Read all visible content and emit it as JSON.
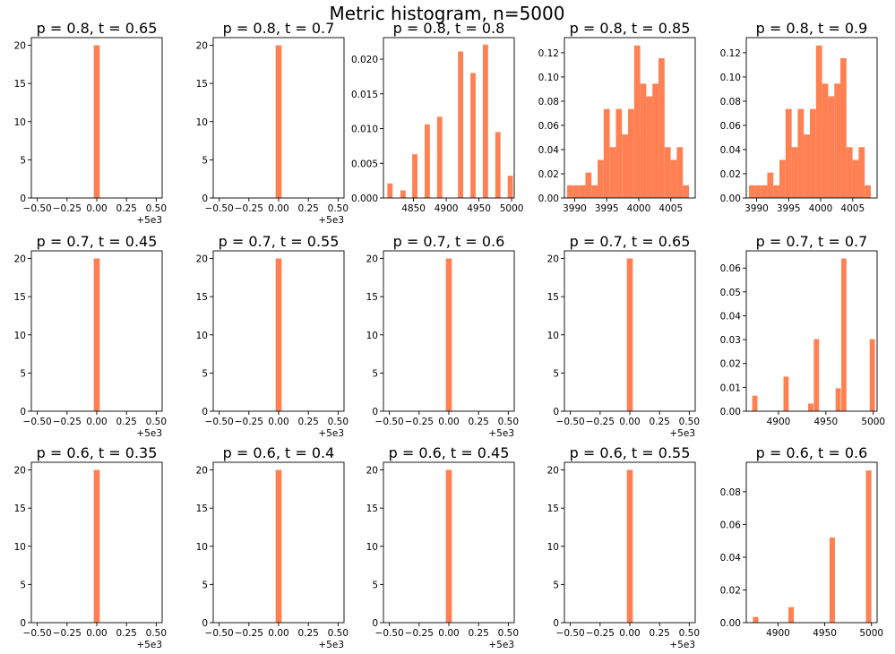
{
  "figure": {
    "title": "Metric histogram, n=5000"
  },
  "colors": {
    "bar": "#ff8153"
  },
  "chart_data": [
    {
      "type": "bar",
      "title": "p = 0.8, t = 0.65",
      "xlim": [
        -0.55,
        0.55
      ],
      "ylim": [
        0,
        21
      ],
      "xticks": [
        -0.5,
        -0.25,
        0,
        0.25,
        0.5
      ],
      "xtick_labels": [
        "−0.50",
        "−0.25",
        "0.00",
        "0.25",
        "0.50"
      ],
      "yticks": [
        0,
        5,
        10,
        15,
        20
      ],
      "ytick_labels": [
        "0",
        "5",
        "10",
        "15",
        "20"
      ],
      "x_offset": "+5e3",
      "bar_width": 0.05,
      "bars": [
        {
          "x": 0.0,
          "value": 20
        }
      ]
    },
    {
      "type": "bar",
      "title": "p = 0.8, t = 0.7",
      "xlim": [
        -0.55,
        0.55
      ],
      "ylim": [
        0,
        21
      ],
      "xticks": [
        -0.5,
        -0.25,
        0,
        0.25,
        0.5
      ],
      "xtick_labels": [
        "−0.50",
        "−0.25",
        "0.00",
        "0.25",
        "0.50"
      ],
      "yticks": [
        0,
        5,
        10,
        15,
        20
      ],
      "ytick_labels": [
        "0",
        "5",
        "10",
        "15",
        "20"
      ],
      "x_offset": "+5e3",
      "bar_width": 0.05,
      "bars": [
        {
          "x": 0.0,
          "value": 20
        }
      ]
    },
    {
      "type": "bar",
      "title": "p = 0.8, t = 0.8",
      "xlim": [
        4804,
        5004
      ],
      "ylim": [
        0,
        0.0231
      ],
      "xticks": [
        4850,
        4900,
        4950,
        5000
      ],
      "xtick_labels": [
        "4850",
        "4900",
        "4950",
        "5000"
      ],
      "yticks": [
        0,
        0.005,
        0.01,
        0.015,
        0.02
      ],
      "ytick_labels": [
        "0.000",
        "0.005",
        "0.010",
        "0.015",
        "0.020"
      ],
      "x_offset": "",
      "bar_width": 8,
      "bars": [
        {
          "x": 4814,
          "value": 0.0021
        },
        {
          "x": 4834,
          "value": 0.0011
        },
        {
          "x": 4852,
          "value": 0.0063
        },
        {
          "x": 4871,
          "value": 0.0106
        },
        {
          "x": 4890,
          "value": 0.0117
        },
        {
          "x": 4922,
          "value": 0.0211
        },
        {
          "x": 4941,
          "value": 0.018
        },
        {
          "x": 4960,
          "value": 0.0221
        },
        {
          "x": 4979,
          "value": 0.0095
        },
        {
          "x": 4998,
          "value": 0.0032
        }
      ]
    },
    {
      "type": "bar",
      "title": "p = 0.8, t = 0.85",
      "xlim": [
        3988.4,
        4008.8
      ],
      "ylim": [
        0,
        0.1325
      ],
      "xticks": [
        3990,
        3995,
        4000,
        4005
      ],
      "xtick_labels": [
        "3990",
        "3995",
        "4000",
        "4005"
      ],
      "yticks": [
        0,
        0.02,
        0.04,
        0.06,
        0.08,
        0.1,
        0.12
      ],
      "ytick_labels": [
        "0.00",
        "0.02",
        "0.04",
        "0.06",
        "0.08",
        "0.10",
        "0.12"
      ],
      "x_offset": "",
      "bar_width": 0.95,
      "bars": [
        {
          "x": 3989.3,
          "value": 0.0105
        },
        {
          "x": 3990.25,
          "value": 0.0105
        },
        {
          "x": 3991.2,
          "value": 0.0105
        },
        {
          "x": 3992.15,
          "value": 0.021
        },
        {
          "x": 3993.1,
          "value": 0.0105
        },
        {
          "x": 3994.05,
          "value": 0.0315
        },
        {
          "x": 3995.0,
          "value": 0.0735
        },
        {
          "x": 3995.95,
          "value": 0.042
        },
        {
          "x": 3996.9,
          "value": 0.0735
        },
        {
          "x": 3997.85,
          "value": 0.0525
        },
        {
          "x": 3998.8,
          "value": 0.0735
        },
        {
          "x": 3999.75,
          "value": 0.126
        },
        {
          "x": 4000.7,
          "value": 0.0945
        },
        {
          "x": 4001.65,
          "value": 0.084
        },
        {
          "x": 4002.6,
          "value": 0.0945
        },
        {
          "x": 4003.55,
          "value": 0.1155
        },
        {
          "x": 4004.5,
          "value": 0.042
        },
        {
          "x": 4005.45,
          "value": 0.0315
        },
        {
          "x": 4006.4,
          "value": 0.042
        },
        {
          "x": 4007.35,
          "value": 0.0105
        }
      ]
    },
    {
      "type": "bar",
      "title": "p = 0.8, t = 0.9",
      "xlim": [
        3988.4,
        4008.8
      ],
      "ylim": [
        0,
        0.1325
      ],
      "xticks": [
        3990,
        3995,
        4000,
        4005
      ],
      "xtick_labels": [
        "3990",
        "3995",
        "4000",
        "4005"
      ],
      "yticks": [
        0,
        0.02,
        0.04,
        0.06,
        0.08,
        0.1,
        0.12
      ],
      "ytick_labels": [
        "0.00",
        "0.02",
        "0.04",
        "0.06",
        "0.08",
        "0.10",
        "0.12"
      ],
      "x_offset": "",
      "bar_width": 0.95,
      "bars": [
        {
          "x": 3989.3,
          "value": 0.0105
        },
        {
          "x": 3990.25,
          "value": 0.0105
        },
        {
          "x": 3991.2,
          "value": 0.0105
        },
        {
          "x": 3992.15,
          "value": 0.021
        },
        {
          "x": 3993.1,
          "value": 0.0105
        },
        {
          "x": 3994.05,
          "value": 0.0315
        },
        {
          "x": 3995.0,
          "value": 0.0735
        },
        {
          "x": 3995.95,
          "value": 0.042
        },
        {
          "x": 3996.9,
          "value": 0.0735
        },
        {
          "x": 3997.85,
          "value": 0.0525
        },
        {
          "x": 3998.8,
          "value": 0.0735
        },
        {
          "x": 3999.75,
          "value": 0.126
        },
        {
          "x": 4000.7,
          "value": 0.0945
        },
        {
          "x": 4001.65,
          "value": 0.084
        },
        {
          "x": 4002.6,
          "value": 0.0945
        },
        {
          "x": 4003.55,
          "value": 0.1155
        },
        {
          "x": 4004.5,
          "value": 0.042
        },
        {
          "x": 4005.45,
          "value": 0.0315
        },
        {
          "x": 4006.4,
          "value": 0.042
        },
        {
          "x": 4007.35,
          "value": 0.0105
        }
      ]
    },
    {
      "type": "bar",
      "title": "p = 0.7, t = 0.45",
      "xlim": [
        -0.55,
        0.55
      ],
      "ylim": [
        0,
        21
      ],
      "xticks": [
        -0.5,
        -0.25,
        0,
        0.25,
        0.5
      ],
      "xtick_labels": [
        "−0.50",
        "−0.25",
        "0.00",
        "0.25",
        "0.50"
      ],
      "yticks": [
        0,
        5,
        10,
        15,
        20
      ],
      "ytick_labels": [
        "0",
        "5",
        "10",
        "15",
        "20"
      ],
      "x_offset": "+5e3",
      "bar_width": 0.05,
      "bars": [
        {
          "x": 0.0,
          "value": 20
        }
      ]
    },
    {
      "type": "bar",
      "title": "p = 0.7, t = 0.55",
      "xlim": [
        -0.55,
        0.55
      ],
      "ylim": [
        0,
        21
      ],
      "xticks": [
        -0.5,
        -0.25,
        0,
        0.25,
        0.5
      ],
      "xtick_labels": [
        "−0.50",
        "−0.25",
        "0.00",
        "0.25",
        "0.50"
      ],
      "yticks": [
        0,
        5,
        10,
        15,
        20
      ],
      "ytick_labels": [
        "0",
        "5",
        "10",
        "15",
        "20"
      ],
      "x_offset": "+5e3",
      "bar_width": 0.05,
      "bars": [
        {
          "x": 0.0,
          "value": 20
        }
      ]
    },
    {
      "type": "bar",
      "title": "p = 0.7, t = 0.6",
      "xlim": [
        -0.55,
        0.55
      ],
      "ylim": [
        0,
        21
      ],
      "xticks": [
        -0.5,
        -0.25,
        0,
        0.25,
        0.5
      ],
      "xtick_labels": [
        "−0.50",
        "−0.25",
        "0.00",
        "0.25",
        "0.50"
      ],
      "yticks": [
        0,
        5,
        10,
        15,
        20
      ],
      "ytick_labels": [
        "0",
        "5",
        "10",
        "15",
        "20"
      ],
      "x_offset": "+5e3",
      "bar_width": 0.05,
      "bars": [
        {
          "x": 0.0,
          "value": 20
        }
      ]
    },
    {
      "type": "bar",
      "title": "p = 0.7, t = 0.65",
      "xlim": [
        -0.55,
        0.55
      ],
      "ylim": [
        0,
        21
      ],
      "xticks": [
        -0.5,
        -0.25,
        0,
        0.25,
        0.5
      ],
      "xtick_labels": [
        "−0.50",
        "−0.25",
        "0.00",
        "0.25",
        "0.50"
      ],
      "yticks": [
        0,
        5,
        10,
        15,
        20
      ],
      "ytick_labels": [
        "0",
        "5",
        "10",
        "15",
        "20"
      ],
      "x_offset": "+5e3",
      "bar_width": 0.05,
      "bars": [
        {
          "x": 0.0,
          "value": 20
        }
      ]
    },
    {
      "type": "bar",
      "title": "p = 0.7, t = 0.7",
      "xlim": [
        4866,
        5004
      ],
      "ylim": [
        0,
        0.0672
      ],
      "xticks": [
        4900,
        4950,
        5000
      ],
      "xtick_labels": [
        "4900",
        "4950",
        "5000"
      ],
      "yticks": [
        0,
        0.01,
        0.02,
        0.03,
        0.04,
        0.05,
        0.06
      ],
      "ytick_labels": [
        "0.00",
        "0.01",
        "0.02",
        "0.03",
        "0.04",
        "0.05",
        "0.06"
      ],
      "x_offset": "",
      "bar_width": 5.5,
      "bars": [
        {
          "x": 4875,
          "value": 0.0065
        },
        {
          "x": 4908,
          "value": 0.0145
        },
        {
          "x": 4934,
          "value": 0.0032
        },
        {
          "x": 4940,
          "value": 0.0302
        },
        {
          "x": 4963,
          "value": 0.0096
        },
        {
          "x": 4969,
          "value": 0.064
        },
        {
          "x": 4999,
          "value": 0.0302
        }
      ]
    },
    {
      "type": "bar",
      "title": "p = 0.6, t = 0.35",
      "xlim": [
        -0.55,
        0.55
      ],
      "ylim": [
        0,
        21
      ],
      "xticks": [
        -0.5,
        -0.25,
        0,
        0.25,
        0.5
      ],
      "xtick_labels": [
        "−0.50",
        "−0.25",
        "0.00",
        "0.25",
        "0.50"
      ],
      "yticks": [
        0,
        5,
        10,
        15,
        20
      ],
      "ytick_labels": [
        "0",
        "5",
        "10",
        "15",
        "20"
      ],
      "x_offset": "+5e3",
      "bar_width": 0.05,
      "bars": [
        {
          "x": 0.0,
          "value": 20
        }
      ]
    },
    {
      "type": "bar",
      "title": "p = 0.6, t = 0.4",
      "xlim": [
        -0.55,
        0.55
      ],
      "ylim": [
        0,
        21
      ],
      "xticks": [
        -0.5,
        -0.25,
        0,
        0.25,
        0.5
      ],
      "xtick_labels": [
        "−0.50",
        "−0.25",
        "0.00",
        "0.25",
        "0.50"
      ],
      "yticks": [
        0,
        5,
        10,
        15,
        20
      ],
      "ytick_labels": [
        "0",
        "5",
        "10",
        "15",
        "20"
      ],
      "x_offset": "+5e3",
      "bar_width": 0.05,
      "bars": [
        {
          "x": 0.0,
          "value": 20
        }
      ]
    },
    {
      "type": "bar",
      "title": "p = 0.6, t = 0.45",
      "xlim": [
        -0.55,
        0.55
      ],
      "ylim": [
        0,
        21
      ],
      "xticks": [
        -0.5,
        -0.25,
        0,
        0.25,
        0.5
      ],
      "xtick_labels": [
        "−0.50",
        "−0.25",
        "0.00",
        "0.25",
        "0.50"
      ],
      "yticks": [
        0,
        5,
        10,
        15,
        20
      ],
      "ytick_labels": [
        "0",
        "5",
        "10",
        "15",
        "20"
      ],
      "x_offset": "+5e3",
      "bar_width": 0.05,
      "bars": [
        {
          "x": 0.0,
          "value": 20
        }
      ]
    },
    {
      "type": "bar",
      "title": "p = 0.6, t = 0.55",
      "xlim": [
        -0.55,
        0.55
      ],
      "ylim": [
        0,
        21
      ],
      "xticks": [
        -0.5,
        -0.25,
        0,
        0.25,
        0.5
      ],
      "xtick_labels": [
        "−0.50",
        "−0.25",
        "0.00",
        "0.25",
        "0.50"
      ],
      "yticks": [
        0,
        5,
        10,
        15,
        20
      ],
      "ytick_labels": [
        "0",
        "5",
        "10",
        "15",
        "20"
      ],
      "x_offset": "+5e3",
      "bar_width": 0.05,
      "bars": [
        {
          "x": 0.0,
          "value": 20
        }
      ]
    },
    {
      "type": "bar",
      "title": "p = 0.6, t = 0.6",
      "xlim": [
        4866,
        5006
      ],
      "ylim": [
        0,
        0.098
      ],
      "xticks": [
        4900,
        4950,
        5000
      ],
      "xtick_labels": [
        "4900",
        "4950",
        "5000"
      ],
      "yticks": [
        0,
        0.02,
        0.04,
        0.06,
        0.08
      ],
      "ytick_labels": [
        "0.00",
        "0.02",
        "0.04",
        "0.06",
        "0.08"
      ],
      "x_offset": "",
      "bar_width": 5.8,
      "bars": [
        {
          "x": 4876,
          "value": 0.0035
        },
        {
          "x": 4914,
          "value": 0.0095
        },
        {
          "x": 4958,
          "value": 0.052
        },
        {
          "x": 4997,
          "value": 0.093
        }
      ]
    }
  ]
}
